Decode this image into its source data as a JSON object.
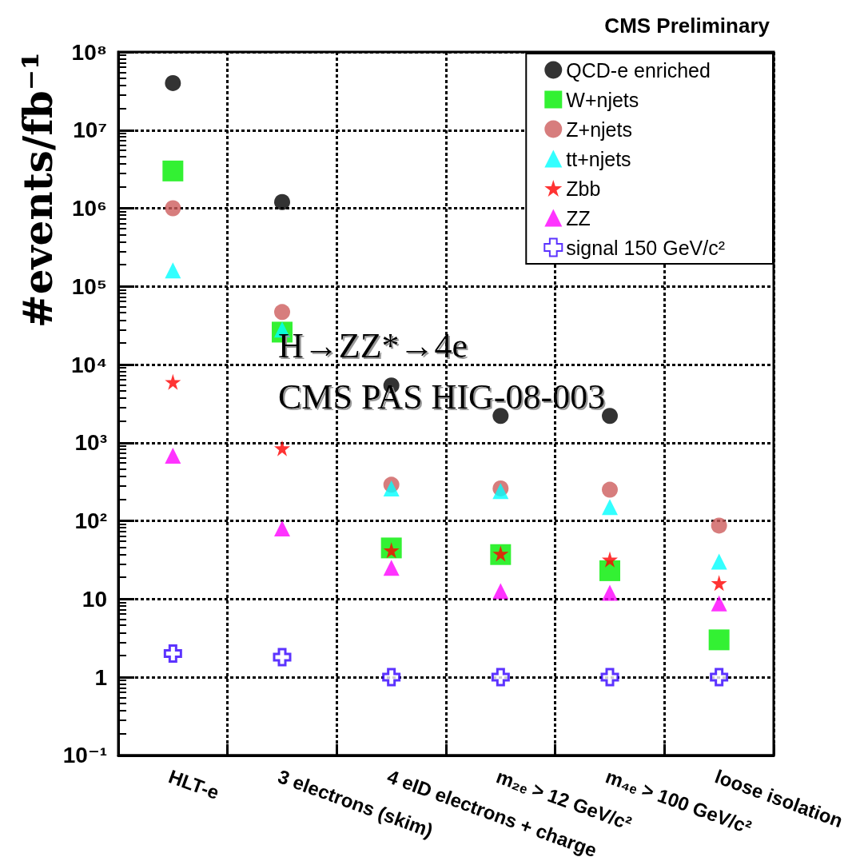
{
  "chart_data": {
    "type": "scatter",
    "title": "CMS Preliminary",
    "ylabel": "#events/fb⁻¹",
    "categories": [
      "HLT-e",
      "3 electrons (skim)",
      "4 eID electrons + charge",
      "m₂ₑ > 12 GeV/c²",
      "m₄ₑ > 100 GeV/c²",
      "loose isolation"
    ],
    "series": [
      {
        "name": "QCD-e enriched",
        "color": "#000000",
        "marker": "circle",
        "values": [
          40000000,
          1200000,
          5400,
          2200,
          2200,
          null
        ]
      },
      {
        "name": "W+njets",
        "color": "#00ee00",
        "marker": "square",
        "values": [
          3000000,
          26000,
          45,
          37,
          23,
          3
        ]
      },
      {
        "name": "Z+njets",
        "color": "#cd5c5c",
        "marker": "circle",
        "values": [
          1000000,
          47000,
          290,
          260,
          250,
          87
        ]
      },
      {
        "name": "tt+njets",
        "color": "#00ffff",
        "marker": "triangle",
        "values": [
          160000,
          28000,
          260,
          240,
          150,
          30
        ]
      },
      {
        "name": "Zbb",
        "color": "#ff0000",
        "marker": "star",
        "values": [
          6000,
          850,
          42,
          38,
          32,
          16
        ]
      },
      {
        "name": "ZZ",
        "color": "#ff00ff",
        "marker": "triangle",
        "values": [
          680,
          80,
          25,
          12.6,
          12,
          8.8
        ]
      },
      {
        "name": "signal 150 GeV/c²",
        "color": "#3300ff",
        "marker": "cross",
        "values": [
          2.0,
          1.8,
          1,
          1,
          1,
          1
        ]
      }
    ],
    "log": "y",
    "ylim": [
      0.1,
      100000000
    ],
    "yticks": [
      {
        "value": 0.1,
        "label": "10⁻¹"
      },
      1,
      10,
      {
        "value": 100,
        "label": "10²"
      },
      {
        "value": 1000,
        "label": "10³"
      },
      {
        "value": 10000,
        "label": "10⁴"
      },
      {
        "value": 100000,
        "label": "10⁵"
      },
      {
        "value": 1000000,
        "label": "10⁶"
      },
      {
        "value": 10000000,
        "label": "10⁷"
      },
      {
        "value": 100000000,
        "label": "10⁸"
      }
    ],
    "grid": true,
    "legend": "top right",
    "annotations": [
      "H→ZZ*→4e",
      "CMS PAS HIG-08-003"
    ]
  }
}
